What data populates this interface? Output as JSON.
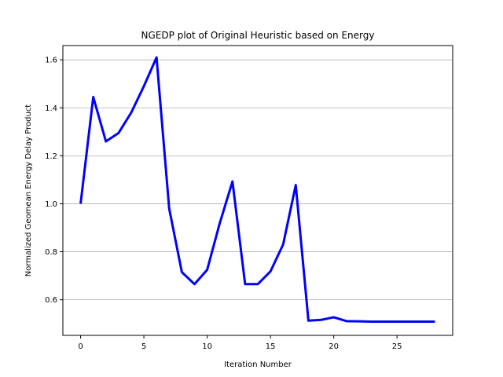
{
  "chart_data": {
    "type": "line",
    "title": "NGEDP plot of Original Heuristic based on Energy",
    "xlabel": "Iteration Number",
    "ylabel": "Normalized Geomean Energy Delay Product",
    "xlim": [
      -1.4,
      29.4
    ],
    "ylim": [
      0.4515,
      1.6595
    ],
    "x_ticks": [
      0,
      5,
      10,
      15,
      20,
      25
    ],
    "y_ticks": [
      0.6,
      0.8,
      1.0,
      1.2,
      1.4,
      1.6
    ],
    "x_tick_labels": [
      "0",
      "5",
      "10",
      "15",
      "20",
      "25"
    ],
    "y_tick_labels": [
      "0.6",
      "0.8",
      "1.0",
      "1.2",
      "1.4",
      "1.6"
    ],
    "grid": "horizontal",
    "legend": "none",
    "series": [
      {
        "color": "#0000ff",
        "x": [
          0,
          1,
          2,
          3,
          4,
          5,
          6,
          7,
          8,
          9,
          10,
          11,
          12,
          13,
          14,
          15,
          16,
          17,
          18,
          19,
          20,
          21,
          22,
          23,
          24,
          25,
          26,
          27,
          28
        ],
        "y": [
          1.0,
          1.445,
          1.26,
          1.295,
          1.38,
          1.49,
          1.61,
          0.98,
          0.715,
          0.665,
          0.725,
          0.92,
          1.093,
          0.665,
          0.665,
          0.718,
          0.83,
          1.078,
          0.513,
          0.516,
          0.527,
          0.511,
          0.51,
          0.509,
          0.509,
          0.509,
          0.509,
          0.509,
          0.509
        ]
      }
    ]
  }
}
